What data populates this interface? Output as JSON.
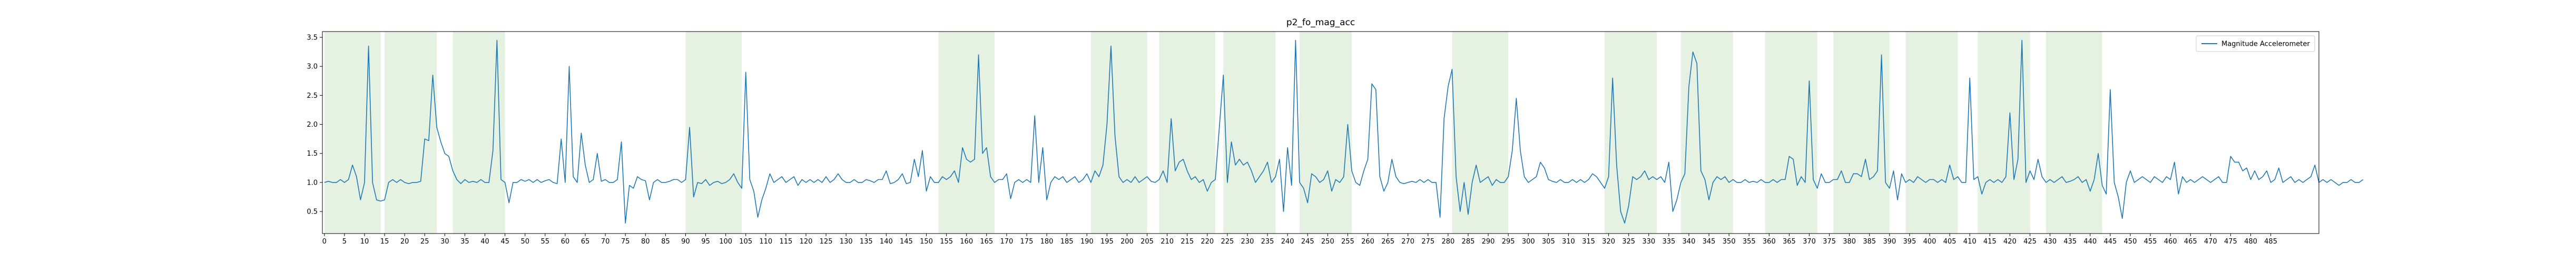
{
  "chart_data": {
    "type": "line",
    "title": "p2_fo_mag_acc",
    "xlabel": "",
    "ylabel": "",
    "xlim": [
      -0.5,
      497
    ],
    "ylim": [
      0.12,
      3.6
    ],
    "grid": false,
    "legend_position": "top-right",
    "x_ticks": [
      0,
      5,
      10,
      15,
      20,
      25,
      30,
      35,
      40,
      45,
      50,
      55,
      60,
      65,
      70,
      75,
      80,
      85,
      90,
      95,
      100,
      105,
      110,
      115,
      120,
      125,
      130,
      135,
      140,
      145,
      150,
      155,
      160,
      165,
      170,
      175,
      180,
      185,
      190,
      195,
      200,
      205,
      210,
      215,
      220,
      225,
      230,
      235,
      240,
      245,
      250,
      255,
      260,
      265,
      270,
      275,
      280,
      285,
      290,
      295,
      300,
      305,
      310,
      315,
      320,
      325,
      330,
      335,
      340,
      345,
      350,
      355,
      360,
      365,
      370,
      375,
      380,
      385,
      390,
      395,
      400,
      405,
      410,
      415,
      420,
      425,
      430,
      435,
      440,
      445,
      450,
      455,
      460,
      465,
      470,
      475,
      480,
      485
    ],
    "y_ticks": [
      0.5,
      1.0,
      1.5,
      2.0,
      2.5,
      3.0,
      3.5
    ],
    "y_tick_labels": [
      "0.5",
      "1.0",
      "1.5",
      "2.0",
      "2.5",
      "3.0",
      "3.5"
    ],
    "shaded_regions": [
      [
        0,
        14
      ],
      [
        15,
        28
      ],
      [
        32,
        45
      ],
      [
        90,
        104
      ],
      [
        153,
        167
      ],
      [
        191,
        205
      ],
      [
        208,
        222
      ],
      [
        224,
        237
      ],
      [
        243,
        256
      ],
      [
        281,
        295
      ],
      [
        319,
        332
      ],
      [
        338,
        351
      ],
      [
        359,
        372
      ],
      [
        376,
        390
      ],
      [
        394,
        407
      ],
      [
        412,
        425
      ],
      [
        429,
        443
      ]
    ],
    "shade_color": "#e5f2e2",
    "series": [
      {
        "name": "Magnitude Accelerometer",
        "color": "#1f77b4",
        "x_start": 0,
        "values": [
          1.0,
          1.02,
          1.0,
          1.0,
          1.05,
          1.0,
          1.05,
          1.3,
          1.1,
          0.7,
          1.0,
          3.35,
          1.0,
          0.7,
          0.68,
          0.7,
          1.0,
          1.05,
          1.0,
          1.05,
          1.0,
          0.98,
          1.0,
          1.0,
          1.02,
          1.75,
          1.72,
          2.85,
          1.95,
          1.7,
          1.5,
          1.45,
          1.2,
          1.05,
          0.98,
          1.05,
          1.0,
          1.02,
          1.0,
          1.05,
          1.0,
          1.0,
          1.55,
          3.45,
          1.05,
          1.0,
          0.65,
          1.0,
          1.0,
          1.05,
          1.02,
          1.05,
          1.0,
          1.05,
          1.0,
          1.03,
          1.05,
          1.0,
          0.98,
          1.75,
          1.0,
          3.0,
          1.1,
          1.0,
          1.85,
          1.3,
          1.0,
          1.05,
          1.5,
          1.02,
          1.05,
          1.0,
          1.0,
          1.05,
          1.7,
          0.3,
          0.95,
          0.9,
          1.1,
          1.05,
          1.03,
          0.7,
          1.0,
          1.05,
          1.0,
          1.0,
          1.02,
          1.05,
          1.05,
          1.0,
          1.05,
          1.95,
          0.75,
          1.0,
          0.98,
          1.05,
          0.95,
          1.0,
          1.02,
          0.98,
          1.0,
          1.05,
          1.15,
          1.0,
          0.9,
          2.9,
          1.05,
          0.85,
          0.4,
          0.7,
          0.9,
          1.15,
          1.0,
          1.05,
          1.1,
          1.0,
          1.05,
          1.1,
          0.95,
          1.05,
          1.0,
          1.05,
          1.0,
          1.05,
          1.0,
          1.1,
          1.0,
          1.05,
          1.15,
          1.05,
          1.0,
          1.0,
          1.05,
          1.0,
          1.0,
          1.05,
          1.03,
          1.0,
          1.05,
          1.05,
          1.2,
          0.98,
          1.0,
          1.05,
          1.15,
          0.98,
          1.0,
          1.4,
          1.1,
          1.55,
          0.85,
          1.1,
          1.0,
          1.0,
          1.1,
          1.05,
          1.1,
          1.2,
          1.0,
          1.6,
          1.4,
          1.35,
          1.4,
          3.2,
          1.5,
          1.6,
          1.1,
          1.0,
          1.05,
          1.05,
          1.15,
          0.72,
          1.0,
          1.05,
          1.0,
          1.05,
          1.0,
          2.15,
          1.0,
          1.6,
          0.7,
          1.0,
          1.1,
          1.05,
          1.1,
          1.0,
          1.05,
          1.1,
          1.0,
          1.05,
          1.15,
          1.0,
          1.2,
          1.1,
          1.3,
          2.0,
          3.35,
          1.8,
          1.1,
          1.0,
          1.05,
          1.0,
          1.1,
          1.0,
          1.05,
          1.1,
          1.02,
          1.0,
          1.05,
          1.2,
          1.0,
          2.1,
          1.2,
          1.35,
          1.4,
          1.2,
          1.05,
          1.1,
          1.0,
          1.05,
          0.85,
          1.0,
          1.05,
          1.95,
          2.85,
          1.0,
          1.7,
          1.3,
          1.4,
          1.3,
          1.35,
          1.2,
          1.0,
          1.1,
          1.2,
          1.35,
          1.0,
          1.1,
          1.4,
          0.5,
          1.6,
          0.95,
          3.45,
          1.0,
          0.9,
          0.65,
          1.15,
          1.1,
          1.0,
          1.05,
          1.2,
          0.85,
          1.05,
          1.0,
          1.1,
          2.0,
          1.2,
          1.0,
          0.95,
          1.2,
          1.4,
          2.7,
          2.6,
          1.1,
          0.85,
          1.0,
          1.4,
          1.1,
          1.0,
          0.98,
          1.0,
          1.02,
          1.0,
          1.05,
          1.0,
          1.05,
          1.0,
          1.0,
          0.4,
          2.1,
          2.65,
          2.95,
          1.1,
          0.5,
          1.0,
          0.45,
          1.0,
          1.3,
          1.0,
          1.05,
          1.1,
          0.95,
          1.05,
          1.0,
          1.0,
          1.1,
          1.55,
          2.45,
          1.55,
          1.1,
          1.0,
          1.05,
          1.1,
          1.35,
          1.25,
          1.05,
          1.02,
          1.0,
          1.05,
          1.0,
          1.0,
          1.05,
          1.0,
          1.05,
          1.0,
          1.05,
          1.15,
          1.1,
          1.0,
          0.9,
          1.1,
          2.8,
          1.3,
          0.5,
          0.3,
          0.6,
          1.1,
          1.05,
          1.1,
          1.2,
          1.05,
          1.1,
          1.05,
          1.1,
          1.0,
          1.35,
          0.5,
          0.7,
          1.0,
          1.15,
          2.65,
          3.25,
          3.05,
          1.2,
          1.05,
          0.7,
          1.0,
          1.1,
          1.05,
          1.1,
          1.0,
          1.05,
          1.0,
          1.0,
          1.05,
          1.0,
          1.02,
          1.0,
          1.05,
          1.0,
          1.0,
          1.05,
          1.0,
          1.05,
          1.05,
          1.45,
          1.4,
          0.95,
          1.1,
          1.0,
          2.75,
          1.05,
          0.9,
          1.15,
          1.0,
          1.0,
          1.05,
          1.05,
          1.2,
          1.0,
          1.0,
          1.15,
          1.15,
          1.1,
          1.4,
          1.05,
          1.1,
          1.2,
          3.2,
          1.0,
          0.9,
          1.2,
          0.7,
          1.15,
          1.0,
          1.05,
          1.0,
          1.1,
          1.05,
          1.0,
          1.05,
          1.05,
          1.0,
          1.05,
          1.0,
          1.3,
          1.05,
          1.1,
          1.0,
          1.0,
          2.8,
          1.05,
          1.1,
          0.8,
          1.0,
          1.05,
          1.0,
          1.05,
          1.0,
          1.1,
          2.2,
          1.05,
          1.4,
          3.45,
          1.0,
          1.2,
          1.05,
          1.4,
          1.1,
          1.0,
          1.05,
          1.0,
          1.05,
          1.1,
          1.0,
          1.02,
          1.05,
          1.1,
          1.0,
          1.05,
          0.85,
          1.05,
          1.5,
          0.95,
          0.8,
          2.6,
          1.0,
          0.75,
          0.38,
          1.0,
          1.2,
          1.0,
          1.05,
          1.1,
          1.05,
          1.0,
          1.1,
          1.05,
          1.0,
          1.1,
          1.05,
          1.35,
          0.8,
          1.1,
          1.0,
          1.05,
          1.0,
          1.05,
          1.1,
          1.05,
          1.0,
          1.05,
          1.1,
          1.0,
          1.0,
          1.45,
          1.35,
          1.35,
          1.2,
          1.25,
          1.05,
          1.2,
          1.05,
          1.1,
          1.2,
          1.0,
          1.05,
          1.25,
          1.0,
          1.05,
          1.1,
          1.0,
          1.05,
          1.0,
          1.05,
          1.1,
          1.3,
          1.0,
          1.05,
          1.0,
          1.05,
          1.0,
          0.95,
          1.0,
          1.0,
          1.05,
          1.0,
          1.0,
          1.05
        ]
      }
    ]
  }
}
